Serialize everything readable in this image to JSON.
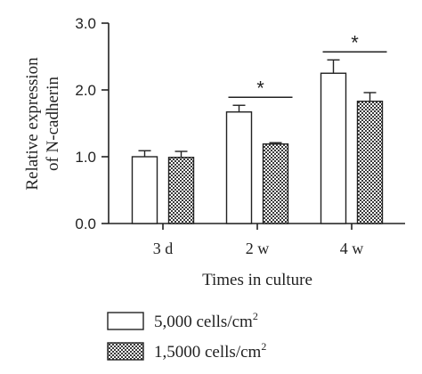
{
  "chart_data": {
    "type": "bar",
    "categories": [
      "3 d",
      "2 w",
      "4 w"
    ],
    "series": [
      {
        "name": "5,000 cells/cm2",
        "values": [
          1.0,
          1.67,
          2.25
        ],
        "errors": [
          0.09,
          0.1,
          0.2
        ],
        "fill": "white"
      },
      {
        "name": "1,5000 cells/cm2",
        "values": [
          0.99,
          1.19,
          1.83
        ],
        "errors": [
          0.09,
          0.02,
          0.13
        ],
        "fill": "checkered"
      }
    ],
    "ylabel_lines": [
      "Relative expression",
      "of N-cadherin"
    ],
    "xlabel": "Times in culture",
    "ylim": [
      0,
      3.0
    ],
    "yticks": [
      "0.0",
      "1.0",
      "2.0",
      "3.0"
    ],
    "significance": [
      {
        "category_index": 1,
        "label": "*"
      },
      {
        "category_index": 2,
        "label": "*"
      }
    ],
    "legend": {
      "placement": "bottom",
      "items": [
        {
          "base": "5,000 cells/cm",
          "sup": "2"
        },
        {
          "base": "1,5000 cells/cm",
          "sup": "2"
        }
      ]
    },
    "colors": {
      "axis": "#222222",
      "bar_edge": "#222222",
      "checker_dark": "#3a3a3a",
      "checker_light": "#ffffff"
    }
  }
}
